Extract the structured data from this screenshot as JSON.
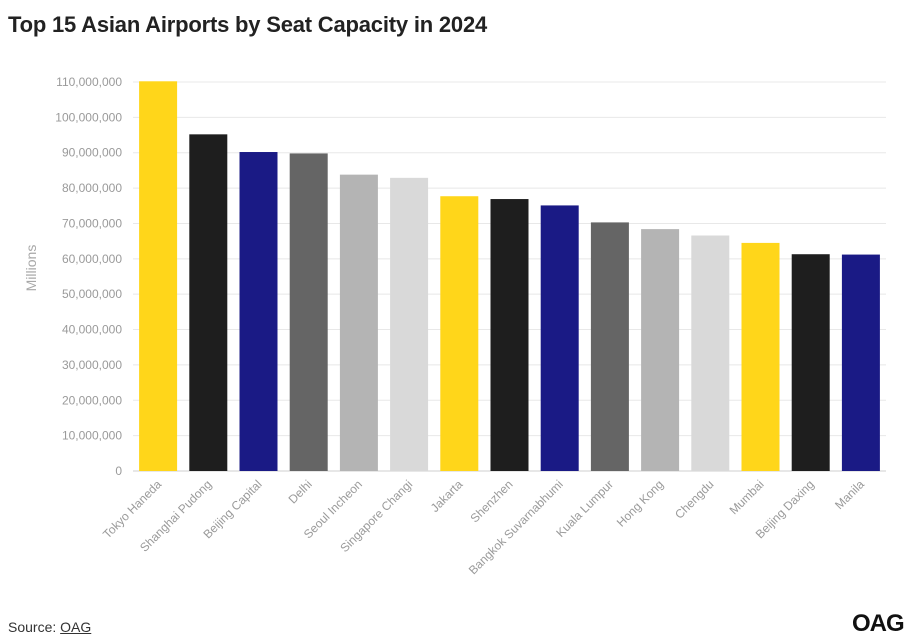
{
  "title": "Top 15 Asian Airports by Seat Capacity in 2024",
  "footer": {
    "source_prefix": "Source: ",
    "source_link": "OAG"
  },
  "logo_text": "OAG",
  "chart_data": {
    "type": "bar",
    "ylabel": "Millions",
    "xlabel": "",
    "ylim": [
      0,
      110000000
    ],
    "yticks": [
      0,
      10000000,
      20000000,
      30000000,
      40000000,
      50000000,
      60000000,
      70000000,
      80000000,
      90000000,
      100000000,
      110000000
    ],
    "ytick_labels": [
      "0",
      "10,000,000",
      "20,000,000",
      "30,000,000",
      "40,000,000",
      "50,000,000",
      "60,000,000",
      "70,000,000",
      "80,000,000",
      "90,000,000",
      "100,000,000",
      "110,000,000"
    ],
    "grid": true,
    "categories": [
      "Tokyo Haneda",
      "Shanghai Pudong",
      "Beijing Capital",
      "Delhi",
      "Seoul Incheon",
      "Singapore Changi",
      "Jakarta",
      "Shenzhen",
      "Bangkok Suvarnabhumi",
      "Kuala Lumpur",
      "Hong Kong",
      "Chengdu",
      "Mumbai",
      "Beijing Daxing",
      "Manila"
    ],
    "values": [
      110200000,
      95200000,
      90200000,
      89800000,
      83800000,
      82900000,
      77700000,
      76900000,
      75100000,
      70300000,
      68400000,
      66600000,
      64500000,
      61300000,
      61200000
    ],
    "colors": [
      "#ffd61a",
      "#1e1e1e",
      "#1a1a85",
      "#656565",
      "#b4b4b4",
      "#d9d9d9",
      "#ffd61a",
      "#1e1e1e",
      "#1a1a85",
      "#656565",
      "#b4b4b4",
      "#d9d9d9",
      "#ffd61a",
      "#1e1e1e",
      "#1a1a85"
    ]
  }
}
